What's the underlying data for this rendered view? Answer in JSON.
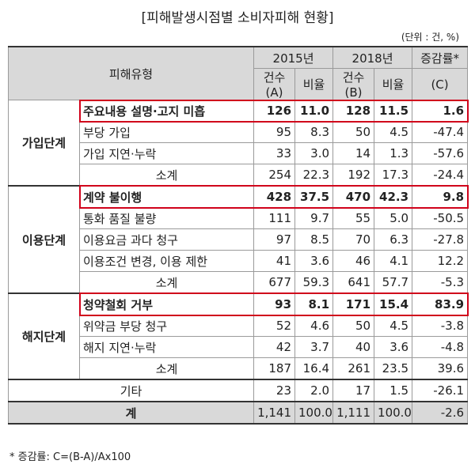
{
  "title": "[피해발생시점별 소비자피해 현황]",
  "unit": "(단위 : 건, %)",
  "header": {
    "type": "피해유형",
    "y2015": "2015년",
    "y2018": "2018년",
    "change": "증감률*",
    "countA": "건수(A)",
    "ratio1": "비율",
    "countB": "건수(B)",
    "ratio2": "비율",
    "changeC": "(C)"
  },
  "groups": [
    {
      "name": "가입단계",
      "rows": [
        {
          "label": "주요내용 설명·고지 미흡",
          "a": "126",
          "ra": "11.0",
          "b": "128",
          "rb": "11.5",
          "c": "1.6"
        },
        {
          "label": "부당 가입",
          "a": "95",
          "ra": "8.3",
          "b": "50",
          "rb": "4.5",
          "c": "-47.4"
        },
        {
          "label": "가입 지연·누락",
          "a": "33",
          "ra": "3.0",
          "b": "14",
          "rb": "1.3",
          "c": "-57.6"
        },
        {
          "label": "소계",
          "a": "254",
          "ra": "22.3",
          "b": "192",
          "rb": "17.3",
          "c": "-24.4"
        }
      ]
    },
    {
      "name": "이용단계",
      "rows": [
        {
          "label": "계약 불이행",
          "a": "428",
          "ra": "37.5",
          "b": "470",
          "rb": "42.3",
          "c": "9.8"
        },
        {
          "label": "통화 품질 불량",
          "a": "111",
          "ra": "9.7",
          "b": "55",
          "rb": "5.0",
          "c": "-50.5"
        },
        {
          "label": "이용요금 과다 청구",
          "a": "97",
          "ra": "8.5",
          "b": "70",
          "rb": "6.3",
          "c": "-27.8"
        },
        {
          "label": "이용조건 변경, 이용 제한",
          "a": "41",
          "ra": "3.6",
          "b": "46",
          "rb": "4.1",
          "c": "12.2"
        },
        {
          "label": "소계",
          "a": "677",
          "ra": "59.3",
          "b": "641",
          "rb": "57.7",
          "c": "-5.3"
        }
      ]
    },
    {
      "name": "해지단계",
      "rows": [
        {
          "label": "청약철회 거부",
          "a": "93",
          "ra": "8.1",
          "b": "171",
          "rb": "15.4",
          "c": "83.9"
        },
        {
          "label": "위약금 부당 청구",
          "a": "52",
          "ra": "4.6",
          "b": "50",
          "rb": "4.5",
          "c": "-3.8"
        },
        {
          "label": "해지 지연·누락",
          "a": "42",
          "ra": "3.7",
          "b": "40",
          "rb": "3.6",
          "c": "-4.8"
        },
        {
          "label": "소계",
          "a": "187",
          "ra": "16.4",
          "b": "261",
          "rb": "23.5",
          "c": "39.6"
        }
      ]
    }
  ],
  "other": {
    "label": "기타",
    "a": "23",
    "ra": "2.0",
    "b": "17",
    "rb": "1.5",
    "c": "-26.1"
  },
  "total": {
    "label": "계",
    "a": "1,141",
    "ra": "100.0",
    "b": "1,111",
    "rb": "100.0",
    "c": "-2.6"
  },
  "footnote": "* 증감률: C=(B-A)/Ax100",
  "highlight_color": "#d0021b"
}
